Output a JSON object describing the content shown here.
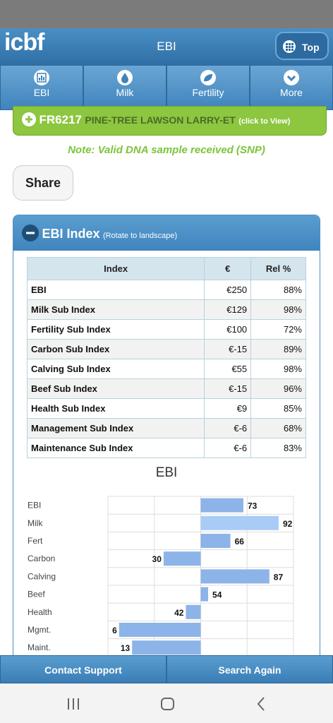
{
  "header": {
    "logo": "icbf",
    "title": "EBI",
    "top_button": "Top"
  },
  "tabs": [
    "EBI",
    "Milk",
    "Fertility",
    "More"
  ],
  "animal": {
    "id": "FR6217",
    "name": "PINE-TREE LAWSON LARRY-ET",
    "action": "(click to View)"
  },
  "note": "Note: Valid DNA sample received (SNP)",
  "share_button": "Share",
  "panel": {
    "title": "EBI Index",
    "hint": "(Rotate to landscape)"
  },
  "table": {
    "columns": [
      "Index",
      "€",
      "Rel %"
    ],
    "rows": [
      [
        "EBI",
        "€250",
        "88%"
      ],
      [
        "Milk Sub Index",
        "€129",
        "98%"
      ],
      [
        "Fertility Sub Index",
        "€100",
        "72%"
      ],
      [
        "Carbon Sub Index",
        "€-15",
        "89%"
      ],
      [
        "Calving Sub Index",
        "€55",
        "98%"
      ],
      [
        "Beef Sub Index",
        "€-15",
        "96%"
      ],
      [
        "Health Sub Index",
        "€9",
        "85%"
      ],
      [
        "Management Sub Index",
        "€-6",
        "68%"
      ],
      [
        "Maintenance Sub Index",
        "€-6",
        "83%"
      ]
    ]
  },
  "chart_data": {
    "type": "bar",
    "orientation": "horizontal",
    "title": "EBI",
    "categories": [
      "EBI",
      "Milk",
      "Fert",
      "Carbon",
      "Calving",
      "Beef",
      "Health",
      "Mgmt.",
      "Maint."
    ],
    "values": [
      73,
      92,
      66,
      30,
      87,
      54,
      42,
      6,
      13
    ],
    "colors": [
      "#8cb4e8",
      "#a8ccf6",
      "#8cb4e8",
      "#8cb4e8",
      "#8cb4e8",
      "#8cb4e8",
      "#8cb4e8",
      "#8cb4e8",
      "#8cb4e8"
    ],
    "xlim": [
      0,
      100
    ],
    "baseline": 50
  },
  "footer": {
    "contact": "Contact Support",
    "search": "Search Again"
  }
}
